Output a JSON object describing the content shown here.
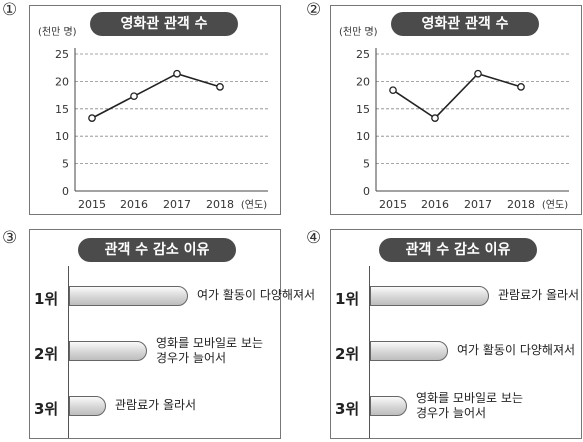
{
  "options": [
    {
      "marker": "①",
      "title": "영화관 관객 수",
      "unit_label": "(천만 명)",
      "x_unit_label": "(연도)",
      "chart_data": {
        "type": "line",
        "x": [
          "2015",
          "2016",
          "2017",
          "2018"
        ],
        "values": [
          13.3,
          17.3,
          21.4,
          19.0
        ],
        "ylim": [
          0,
          25
        ],
        "yticks": [
          "0",
          "5",
          "10",
          "15",
          "20",
          "25"
        ],
        "grid": true
      }
    },
    {
      "marker": "②",
      "title": "영화관 관객 수",
      "unit_label": "(천만 명)",
      "x_unit_label": "(연도)",
      "chart_data": {
        "type": "line",
        "x": [
          "2015",
          "2016",
          "2017",
          "2018"
        ],
        "values": [
          18.4,
          13.3,
          21.4,
          19.0
        ],
        "ylim": [
          0,
          25
        ],
        "yticks": [
          "0",
          "5",
          "10",
          "15",
          "20",
          "25"
        ],
        "grid": true
      }
    },
    {
      "marker": "③",
      "title": "관객 수 감소 이유",
      "chart_data": {
        "type": "bar",
        "orientation": "horizontal",
        "categories": [
          "1위",
          "2위",
          "3위"
        ],
        "labels": [
          [
            "여가 활동이 다양해져서"
          ],
          [
            "영화를 모바일로 보는",
            "경우가 늘어서"
          ],
          [
            "관람료가 올라서"
          ]
        ],
        "values": [
          3,
          2,
          1
        ]
      }
    },
    {
      "marker": "④",
      "title": "관객 수 감소 이유",
      "chart_data": {
        "type": "bar",
        "orientation": "horizontal",
        "categories": [
          "1위",
          "2위",
          "3위"
        ],
        "labels": [
          [
            "관람료가 올라서"
          ],
          [
            "여가 활동이 다양해져서"
          ],
          [
            "영화를 모바일로 보는",
            "경우가 늘어서"
          ]
        ],
        "values": [
          3,
          2,
          1
        ]
      }
    }
  ]
}
